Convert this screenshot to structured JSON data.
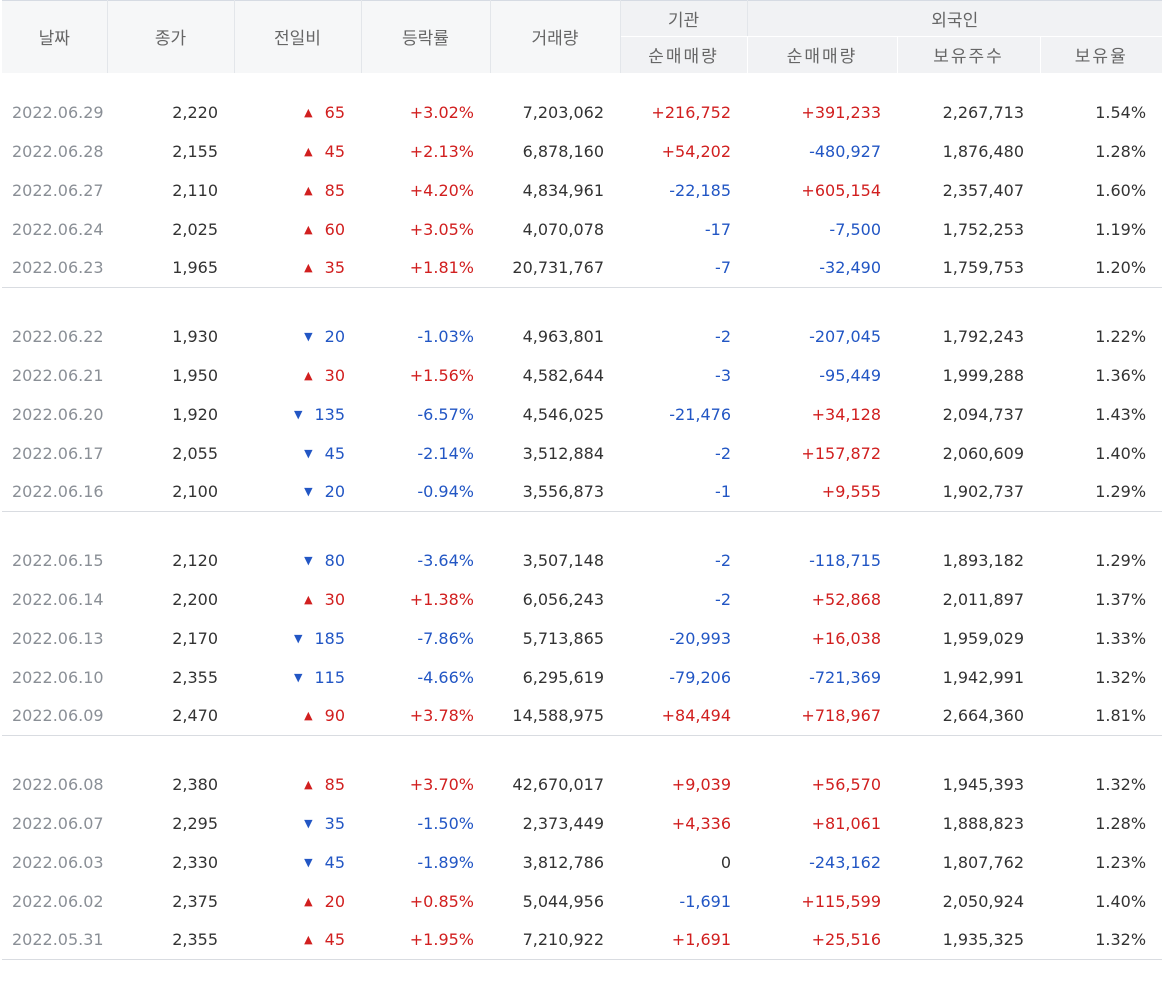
{
  "columns": {
    "date": "날짜",
    "close": "종가",
    "change": "전일비",
    "rate": "등락률",
    "volume": "거래량",
    "inst_group": "기관",
    "foreign_group": "외국인",
    "inst_net": "순매매량",
    "foreign_net": "순매매량",
    "foreign_holdings": "보유주수",
    "foreign_ratio": "보유율"
  },
  "colors": {
    "up": "#d11f1f",
    "down": "#2256c4"
  },
  "groups": [
    [
      {
        "date": "2022.06.29",
        "close": "2,220",
        "dir": "up",
        "change": "65",
        "rate": "+3.02%",
        "volume": "7,203,062",
        "inst": "+216,752",
        "foreign": "+391,233",
        "holdings": "2,267,713",
        "ratio": "1.54%"
      },
      {
        "date": "2022.06.28",
        "close": "2,155",
        "dir": "up",
        "change": "45",
        "rate": "+2.13%",
        "volume": "6,878,160",
        "inst": "+54,202",
        "foreign": "-480,927",
        "holdings": "1,876,480",
        "ratio": "1.28%"
      },
      {
        "date": "2022.06.27",
        "close": "2,110",
        "dir": "up",
        "change": "85",
        "rate": "+4.20%",
        "volume": "4,834,961",
        "inst": "-22,185",
        "foreign": "+605,154",
        "holdings": "2,357,407",
        "ratio": "1.60%"
      },
      {
        "date": "2022.06.24",
        "close": "2,025",
        "dir": "up",
        "change": "60",
        "rate": "+3.05%",
        "volume": "4,070,078",
        "inst": "-17",
        "foreign": "-7,500",
        "holdings": "1,752,253",
        "ratio": "1.19%"
      },
      {
        "date": "2022.06.23",
        "close": "1,965",
        "dir": "up",
        "change": "35",
        "rate": "+1.81%",
        "volume": "20,731,767",
        "inst": "-7",
        "foreign": "-32,490",
        "holdings": "1,759,753",
        "ratio": "1.20%"
      }
    ],
    [
      {
        "date": "2022.06.22",
        "close": "1,930",
        "dir": "down",
        "change": "20",
        "rate": "-1.03%",
        "volume": "4,963,801",
        "inst": "-2",
        "foreign": "-207,045",
        "holdings": "1,792,243",
        "ratio": "1.22%"
      },
      {
        "date": "2022.06.21",
        "close": "1,950",
        "dir": "up",
        "change": "30",
        "rate": "+1.56%",
        "volume": "4,582,644",
        "inst": "-3",
        "foreign": "-95,449",
        "holdings": "1,999,288",
        "ratio": "1.36%"
      },
      {
        "date": "2022.06.20",
        "close": "1,920",
        "dir": "down",
        "change": "135",
        "rate": "-6.57%",
        "volume": "4,546,025",
        "inst": "-21,476",
        "foreign": "+34,128",
        "holdings": "2,094,737",
        "ratio": "1.43%"
      },
      {
        "date": "2022.06.17",
        "close": "2,055",
        "dir": "down",
        "change": "45",
        "rate": "-2.14%",
        "volume": "3,512,884",
        "inst": "-2",
        "foreign": "+157,872",
        "holdings": "2,060,609",
        "ratio": "1.40%"
      },
      {
        "date": "2022.06.16",
        "close": "2,100",
        "dir": "down",
        "change": "20",
        "rate": "-0.94%",
        "volume": "3,556,873",
        "inst": "-1",
        "foreign": "+9,555",
        "holdings": "1,902,737",
        "ratio": "1.29%"
      }
    ],
    [
      {
        "date": "2022.06.15",
        "close": "2,120",
        "dir": "down",
        "change": "80",
        "rate": "-3.64%",
        "volume": "3,507,148",
        "inst": "-2",
        "foreign": "-118,715",
        "holdings": "1,893,182",
        "ratio": "1.29%"
      },
      {
        "date": "2022.06.14",
        "close": "2,200",
        "dir": "up",
        "change": "30",
        "rate": "+1.38%",
        "volume": "6,056,243",
        "inst": "-2",
        "foreign": "+52,868",
        "holdings": "2,011,897",
        "ratio": "1.37%"
      },
      {
        "date": "2022.06.13",
        "close": "2,170",
        "dir": "down",
        "change": "185",
        "rate": "-7.86%",
        "volume": "5,713,865",
        "inst": "-20,993",
        "foreign": "+16,038",
        "holdings": "1,959,029",
        "ratio": "1.33%"
      },
      {
        "date": "2022.06.10",
        "close": "2,355",
        "dir": "down",
        "change": "115",
        "rate": "-4.66%",
        "volume": "6,295,619",
        "inst": "-79,206",
        "foreign": "-721,369",
        "holdings": "1,942,991",
        "ratio": "1.32%"
      },
      {
        "date": "2022.06.09",
        "close": "2,470",
        "dir": "up",
        "change": "90",
        "rate": "+3.78%",
        "volume": "14,588,975",
        "inst": "+84,494",
        "foreign": "+718,967",
        "holdings": "2,664,360",
        "ratio": "1.81%"
      }
    ],
    [
      {
        "date": "2022.06.08",
        "close": "2,380",
        "dir": "up",
        "change": "85",
        "rate": "+3.70%",
        "volume": "42,670,017",
        "inst": "+9,039",
        "foreign": "+56,570",
        "holdings": "1,945,393",
        "ratio": "1.32%"
      },
      {
        "date": "2022.06.07",
        "close": "2,295",
        "dir": "down",
        "change": "35",
        "rate": "-1.50%",
        "volume": "2,373,449",
        "inst": "+4,336",
        "foreign": "+81,061",
        "holdings": "1,888,823",
        "ratio": "1.28%"
      },
      {
        "date": "2022.06.03",
        "close": "2,330",
        "dir": "down",
        "change": "45",
        "rate": "-1.89%",
        "volume": "3,812,786",
        "inst": "0",
        "foreign": "-243,162",
        "holdings": "1,807,762",
        "ratio": "1.23%"
      },
      {
        "date": "2022.06.02",
        "close": "2,375",
        "dir": "up",
        "change": "20",
        "rate": "+0.85%",
        "volume": "5,044,956",
        "inst": "-1,691",
        "foreign": "+115,599",
        "holdings": "2,050,924",
        "ratio": "1.40%"
      },
      {
        "date": "2022.05.31",
        "close": "2,355",
        "dir": "up",
        "change": "45",
        "rate": "+1.95%",
        "volume": "7,210,922",
        "inst": "+1,691",
        "foreign": "+25,516",
        "holdings": "1,935,325",
        "ratio": "1.32%"
      }
    ]
  ]
}
